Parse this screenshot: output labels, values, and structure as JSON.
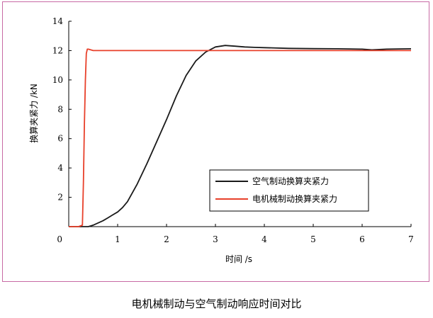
{
  "caption": "电机械制动与空气制动响应时间对比",
  "chart_data": {
    "type": "line",
    "xlabel": "时间 /s",
    "ylabel": "换算夹紧力 /kN",
    "xlim": [
      0,
      7
    ],
    "ylim": [
      0,
      14
    ],
    "xticks": [
      0,
      1,
      2,
      3,
      4,
      5,
      6,
      7
    ],
    "yticks": [
      2,
      4,
      6,
      8,
      10,
      12,
      14
    ],
    "grid": false,
    "legend_position": "lower-right",
    "series": [
      {
        "name": "空气制动换算夹紧力",
        "color": "#1a1a1a",
        "x": [
          0.0,
          0.3,
          0.4,
          0.5,
          0.6,
          0.7,
          0.8,
          0.9,
          1.0,
          1.1,
          1.2,
          1.4,
          1.6,
          1.8,
          2.0,
          2.2,
          2.4,
          2.6,
          2.8,
          3.0,
          3.2,
          3.4,
          3.6,
          3.8,
          4.0,
          4.5,
          5.0,
          5.5,
          6.0,
          6.2,
          6.5,
          7.0
        ],
        "y": [
          0.0,
          0.0,
          0.0,
          0.1,
          0.25,
          0.4,
          0.6,
          0.8,
          1.0,
          1.3,
          1.7,
          2.9,
          4.3,
          5.8,
          7.3,
          8.9,
          10.3,
          11.3,
          11.9,
          12.25,
          12.35,
          12.3,
          12.25,
          12.22,
          12.2,
          12.15,
          12.13,
          12.12,
          12.1,
          12.05,
          12.1,
          12.12
        ]
      },
      {
        "name": "电机械制动换算夹紧力",
        "color": "#e8402a",
        "x": [
          0.0,
          0.2,
          0.28,
          0.3,
          0.32,
          0.34,
          0.36,
          0.38,
          0.4,
          0.45,
          0.5,
          0.6,
          1.0,
          2.0,
          3.0,
          4.0,
          5.0,
          6.0,
          7.0
        ],
        "y": [
          0.0,
          0.0,
          0.1,
          3.0,
          7.0,
          10.0,
          11.8,
          12.1,
          12.1,
          12.05,
          12.0,
          12.0,
          12.0,
          12.0,
          12.0,
          12.0,
          12.0,
          12.0,
          12.0
        ]
      }
    ]
  }
}
